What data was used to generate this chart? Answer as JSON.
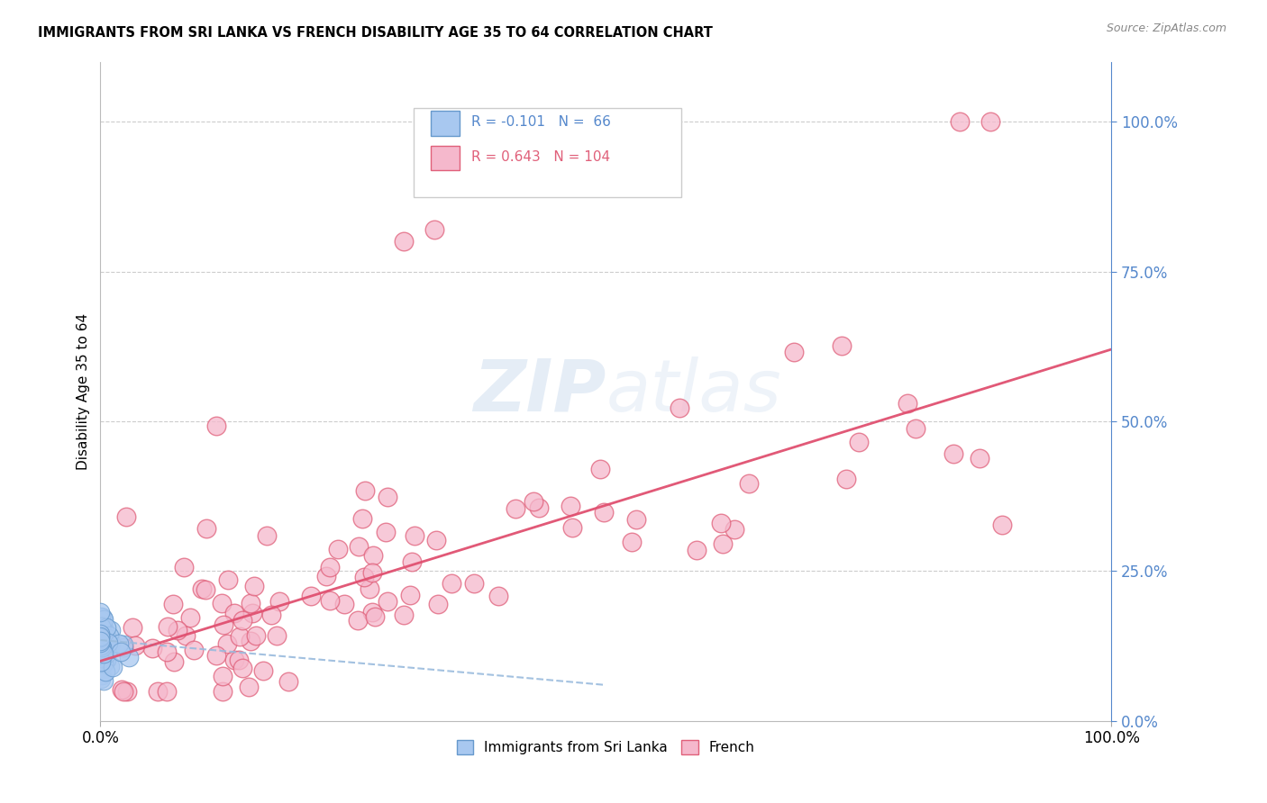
{
  "title": "IMMIGRANTS FROM SRI LANKA VS FRENCH DISABILITY AGE 35 TO 64 CORRELATION CHART",
  "source": "Source: ZipAtlas.com",
  "ylabel": "Disability Age 35 to 64",
  "legend_label1": "Immigrants from Sri Lanka",
  "legend_label2": "French",
  "R1": -0.101,
  "N1": 66,
  "R2": 0.643,
  "N2": 104,
  "color_blue": "#A8C8F0",
  "color_blue_edge": "#6699CC",
  "color_pink": "#F5B8CC",
  "color_pink_edge": "#E0607A",
  "color_trend_blue": "#99BBDD",
  "color_trend_pink": "#E05070",
  "color_right_axis": "#5588CC",
  "watermark_color": "#D0DFF0",
  "grid_color": "#CCCCCC"
}
